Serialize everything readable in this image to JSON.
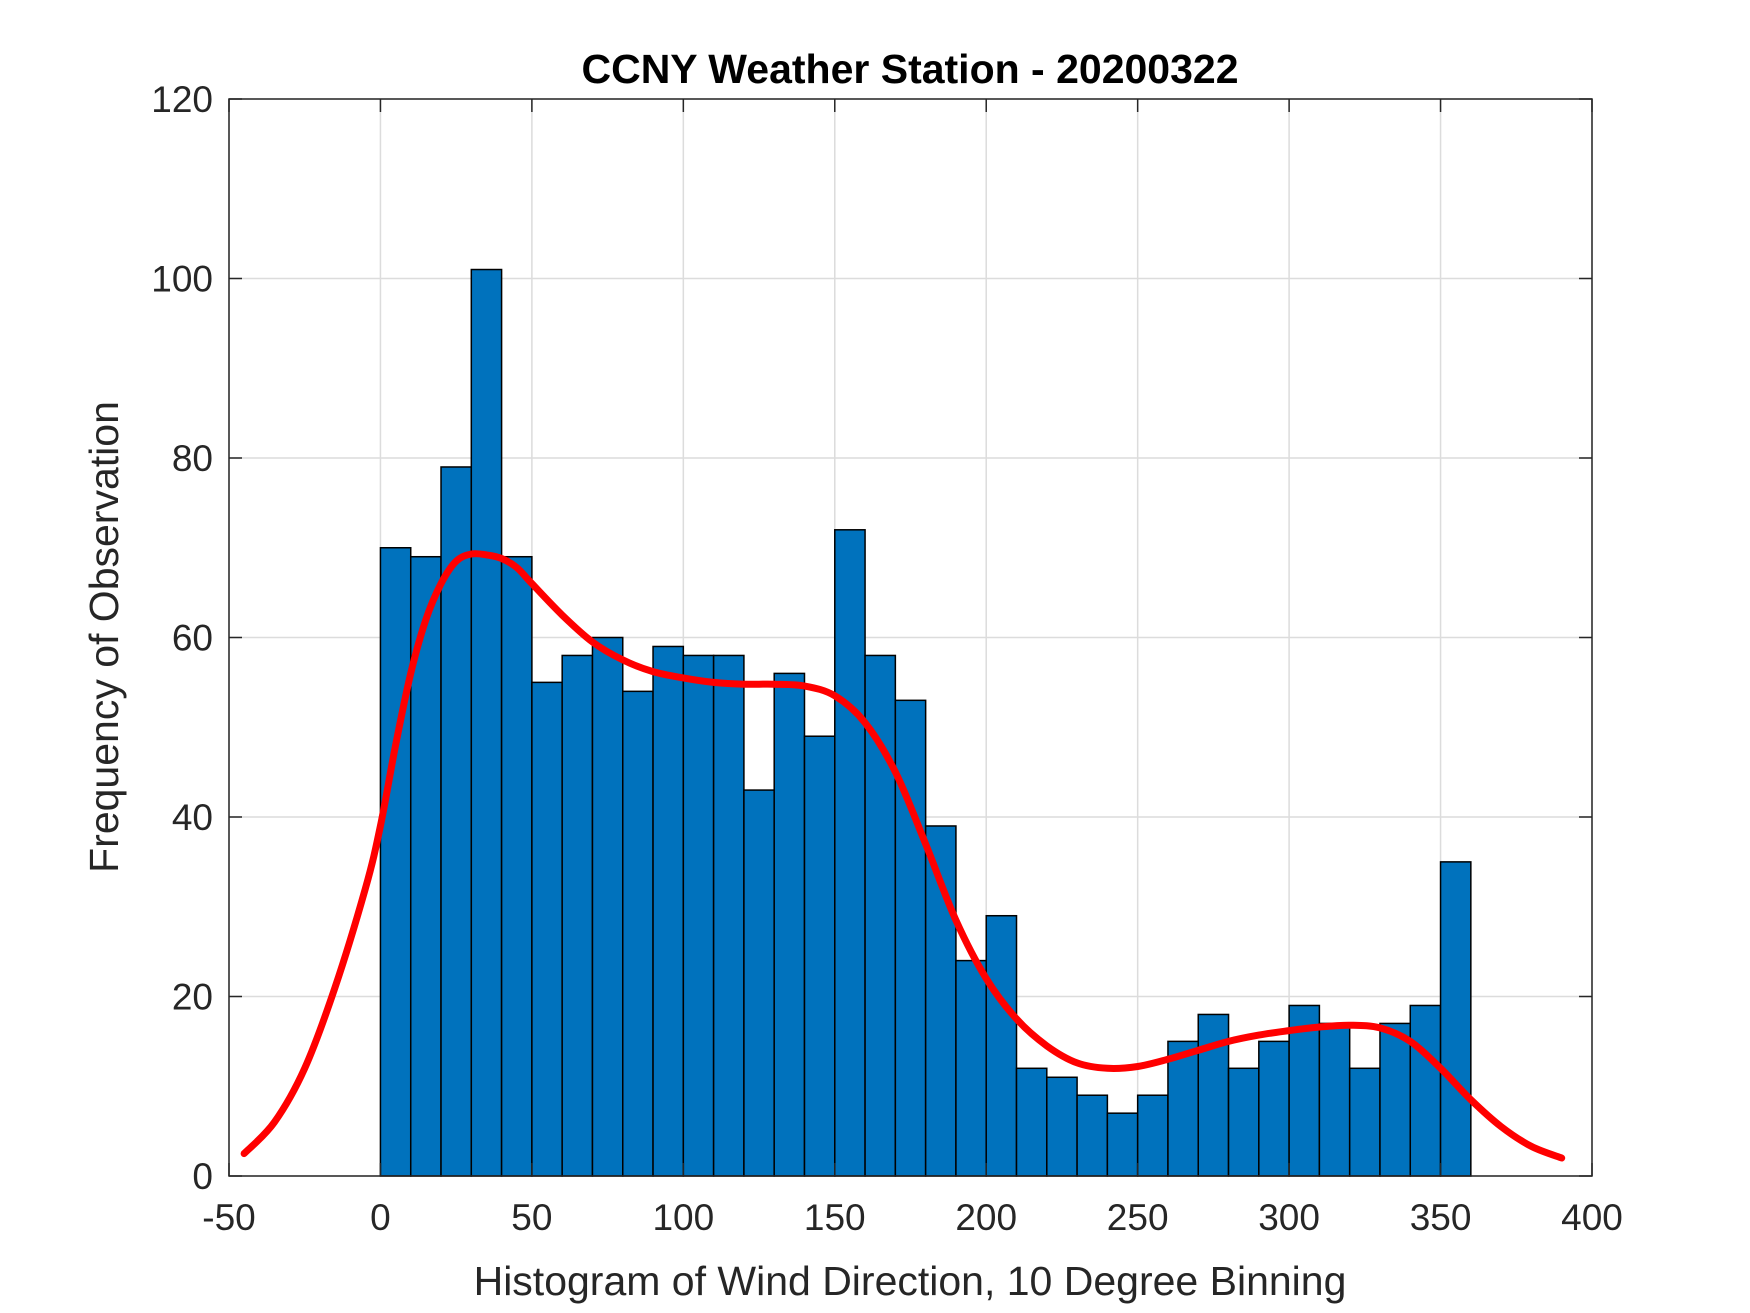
{
  "chart_data": {
    "type": "bar",
    "title": "CCNY Weather Station - 20200322",
    "xlabel": "Histogram of Wind Direction, 10 Degree Binning",
    "ylabel": "Frequency of Observation",
    "xlim": [
      -50,
      400
    ],
    "ylim": [
      0,
      120
    ],
    "xticks": [
      -50,
      0,
      50,
      100,
      150,
      200,
      250,
      300,
      350,
      400
    ],
    "yticks": [
      0,
      20,
      40,
      60,
      80,
      100,
      120
    ],
    "xtick_labels": [
      "-50",
      "0",
      "50",
      "100",
      "150",
      "200",
      "250",
      "300",
      "350",
      "400"
    ],
    "ytick_labels": [
      "0",
      "20",
      "40",
      "60",
      "80",
      "100",
      "120"
    ],
    "grid": true,
    "bin_width": 10,
    "bin_starts": [
      0,
      10,
      20,
      30,
      40,
      50,
      60,
      70,
      80,
      90,
      100,
      110,
      120,
      130,
      140,
      150,
      160,
      170,
      180,
      190,
      200,
      210,
      220,
      230,
      240,
      250,
      260,
      270,
      280,
      290,
      300,
      310,
      320,
      330,
      340,
      350
    ],
    "values": [
      70,
      69,
      79,
      101,
      69,
      55,
      58,
      60,
      54,
      59,
      58,
      58,
      43,
      56,
      49,
      72,
      58,
      53,
      39,
      24,
      29,
      12,
      11,
      9,
      7,
      9,
      15,
      18,
      12,
      15,
      19,
      17,
      12,
      17,
      19,
      35
    ],
    "bar_color": "#0072BD",
    "bar_edge_color": "#000000",
    "fit_curve": {
      "color": "#FF0000",
      "x": [
        -45,
        -35,
        -25,
        -15,
        -5,
        0,
        5,
        10,
        15,
        20,
        25,
        30,
        35,
        40,
        45,
        50,
        60,
        70,
        80,
        90,
        100,
        110,
        120,
        130,
        140,
        150,
        160,
        170,
        180,
        190,
        200,
        210,
        220,
        230,
        240,
        250,
        260,
        270,
        280,
        290,
        300,
        310,
        320,
        330,
        340,
        350,
        360,
        370,
        380,
        390
      ],
      "y": [
        2.5,
        6,
        12,
        21,
        32,
        39,
        48,
        56,
        62,
        66,
        68.5,
        69.3,
        69.2,
        68.8,
        67.8,
        66,
        62.5,
        59.5,
        57.5,
        56.2,
        55.5,
        55,
        54.8,
        54.8,
        54.6,
        53.5,
        50.5,
        45,
        37,
        28.5,
        22,
        17.5,
        14.5,
        12.6,
        12,
        12.2,
        13,
        14,
        15,
        15.7,
        16.2,
        16.6,
        16.8,
        16.5,
        15,
        12,
        8.5,
        5.5,
        3.3,
        2
      ]
    }
  }
}
